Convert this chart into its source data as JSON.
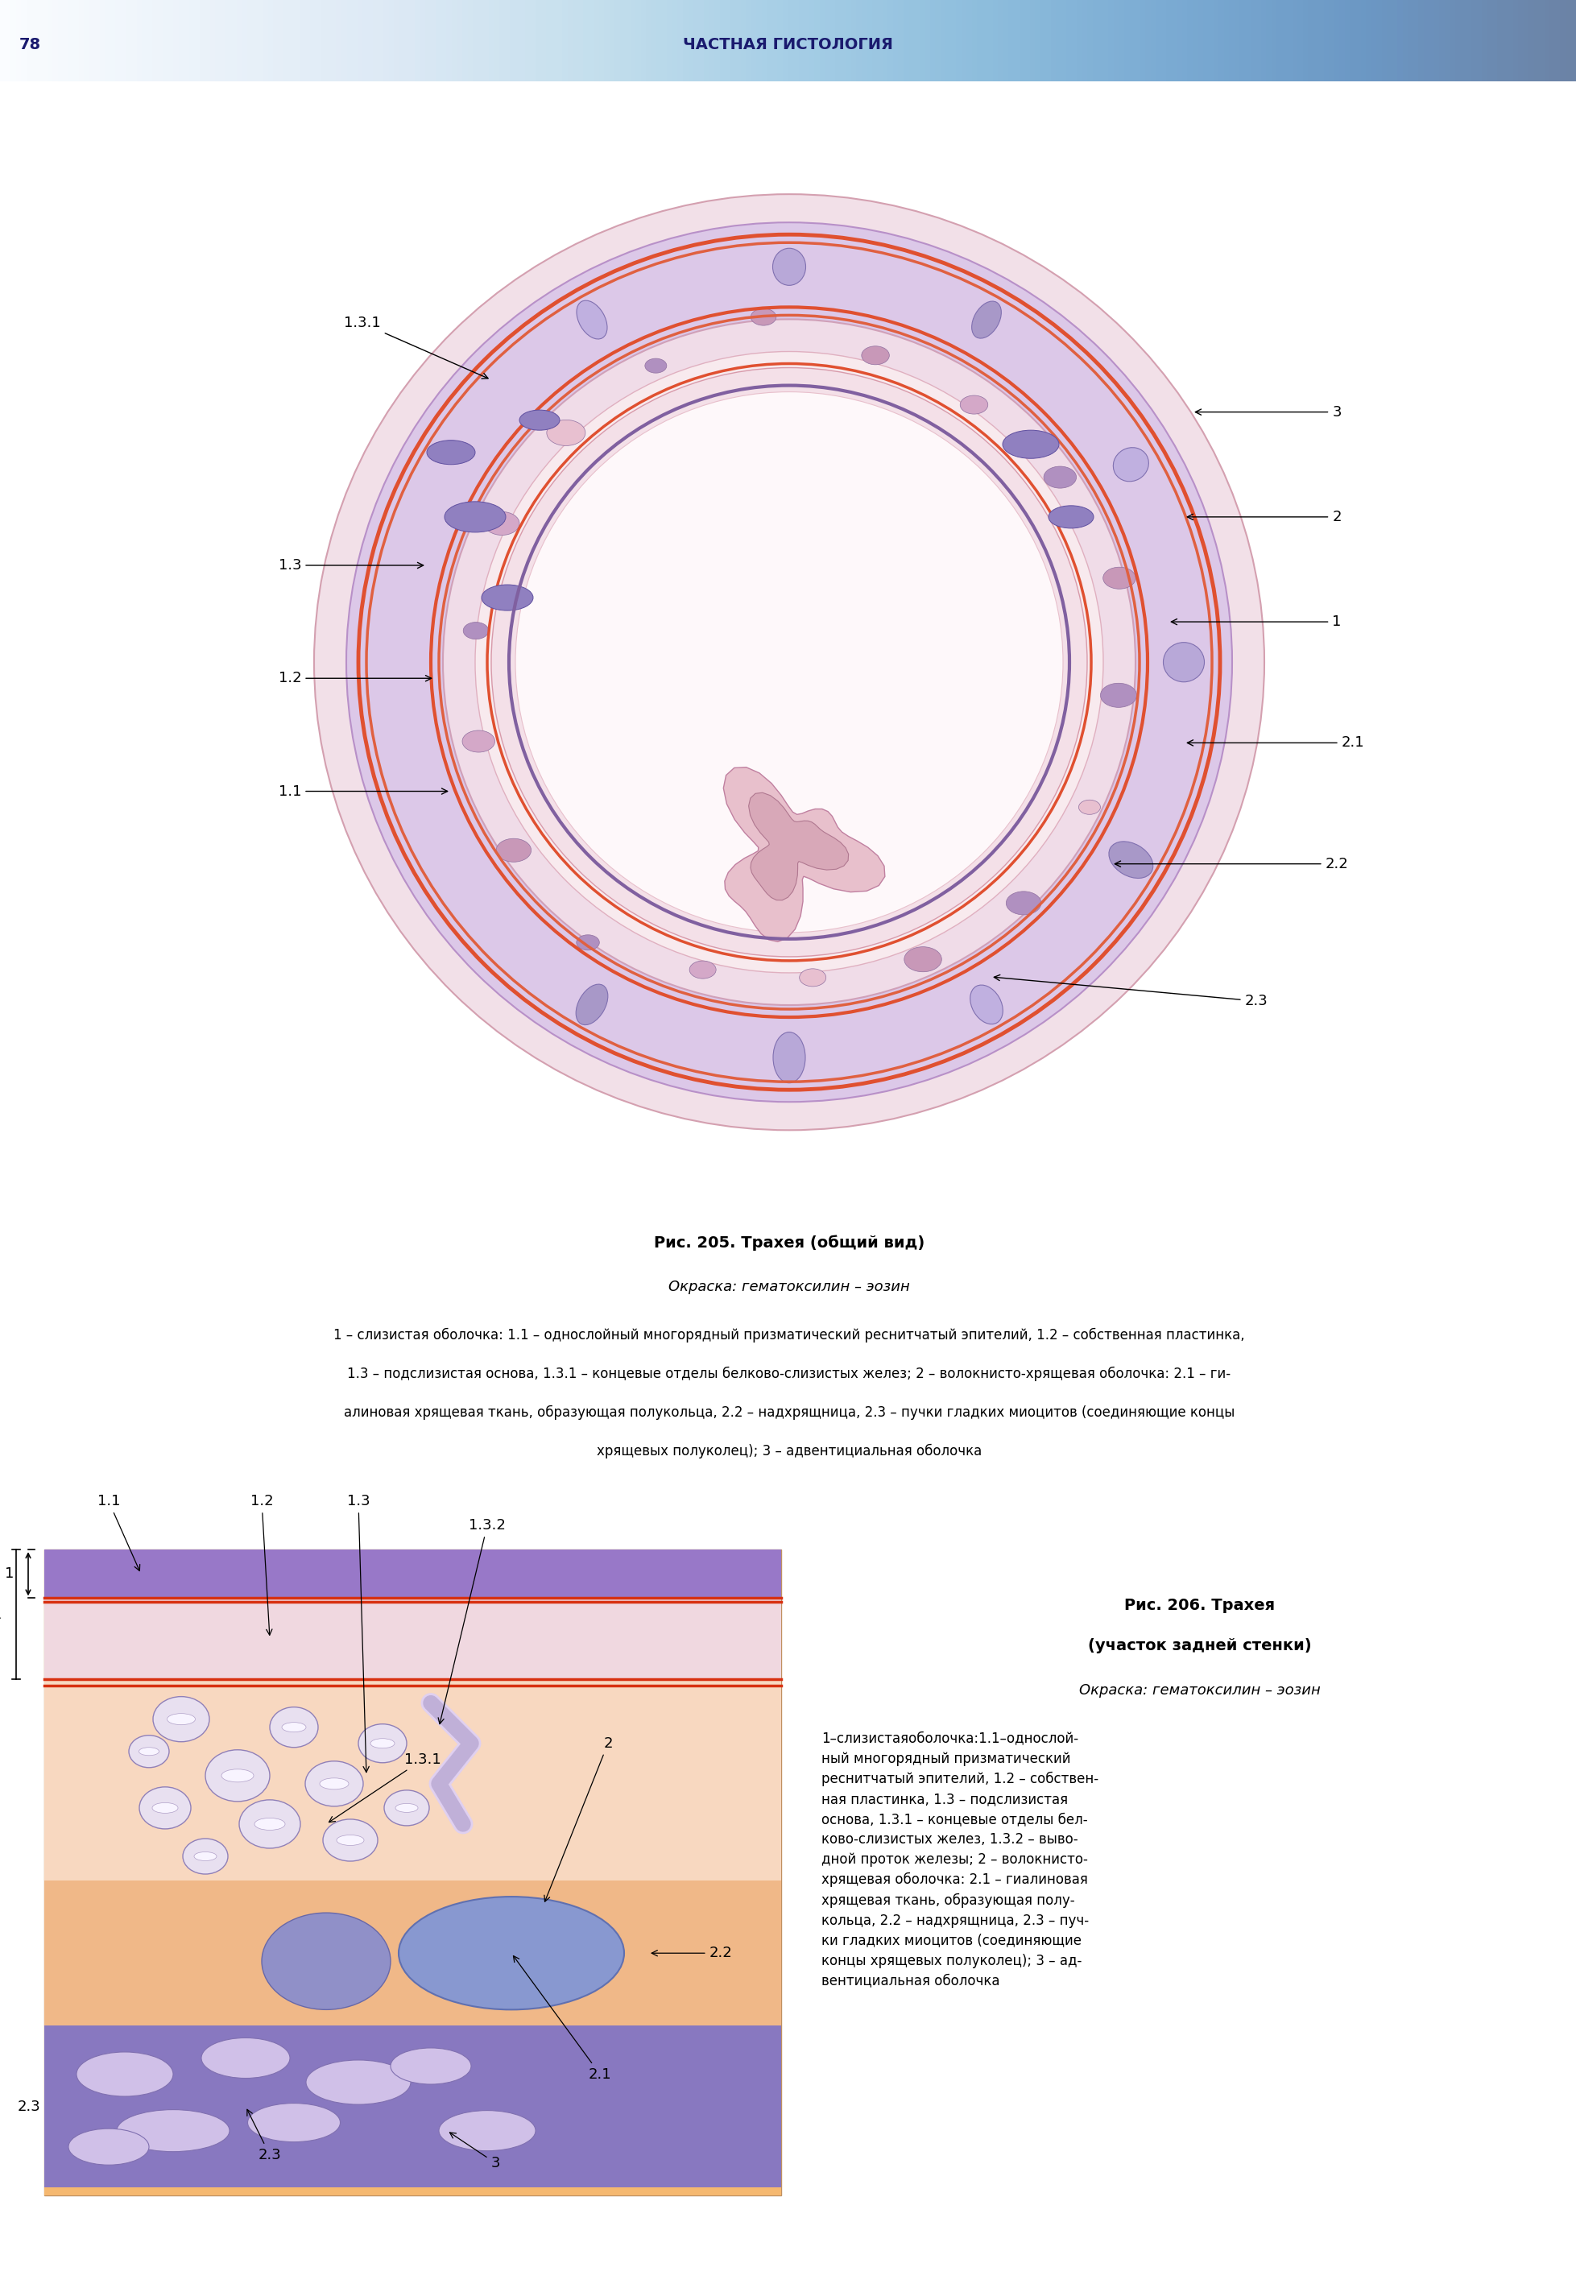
{
  "page_number": "78",
  "header_title": "ЧАСТНАЯ ГИСТОЛОГИЯ",
  "header_bg_start": "#c8dff0",
  "header_bg_end": "#e8f4ff",
  "header_text_color": "#1a1a6e",
  "bg_color": "#ffffff",
  "fig205_title": "Рис. 205. Трахея (общий вид)",
  "fig205_subtitle": "Окраска: гематоксилин – эозин",
  "fig205_caption_line1": "1 – слизистая оболочка: 1.1 – однослойный многорядный призматический реснитчатый эпителий, 1.2 – собственная пластинка,",
  "fig205_caption_line2": "1.3 – подслизистая основа, 1.3.1 – концевые отделы белково-слизистых желез; 2 – волокнисто-хрящевая оболочка: 2.1 – ги-",
  "fig205_caption_line3": "алиновая хрящевая ткань, образующая полукольца, 2.2 – надхрящница, 2.3 – пучки гладких миоцитов (соединяющие концы",
  "fig205_caption_line4": "хрящевых полуколец); 3 – адвентициальная оболочка",
  "fig206_title_line1": "Рис. 206. Трахея",
  "fig206_title_line2": "(участок задней стенки)",
  "fig206_subtitle": "Окраска: гематоксилин – эозин",
  "fig206_caption": "1–слизистаяоболочка:1.1–однослой-\nный многорядный призматический\nреснитчатый эпителий, 1.2 – собствен-\nная пластинка, 1.3 – подслизистая\nоснова, 1.3.1 – концевые отделы бел-\nково-слизистых желез, 1.3.2 – выво-\nдной проток железы; 2 – волокнисто-\nхрящевая оболочка: 2.1 – гиалиновая\nхрящевая ткань, образующая полу-\nкольца, 2.2 – надхрящница, 2.3 – пуч-\nки гладких миоцитов (соединяющие\nконцы хрящевых полуколец); 3 – ад-\nвентициальная оболочка",
  "label_fontsize": 13,
  "caption_fontsize": 12,
  "title_fontsize": 14,
  "subtitle_fontsize": 13,
  "header_fontsize": 14
}
